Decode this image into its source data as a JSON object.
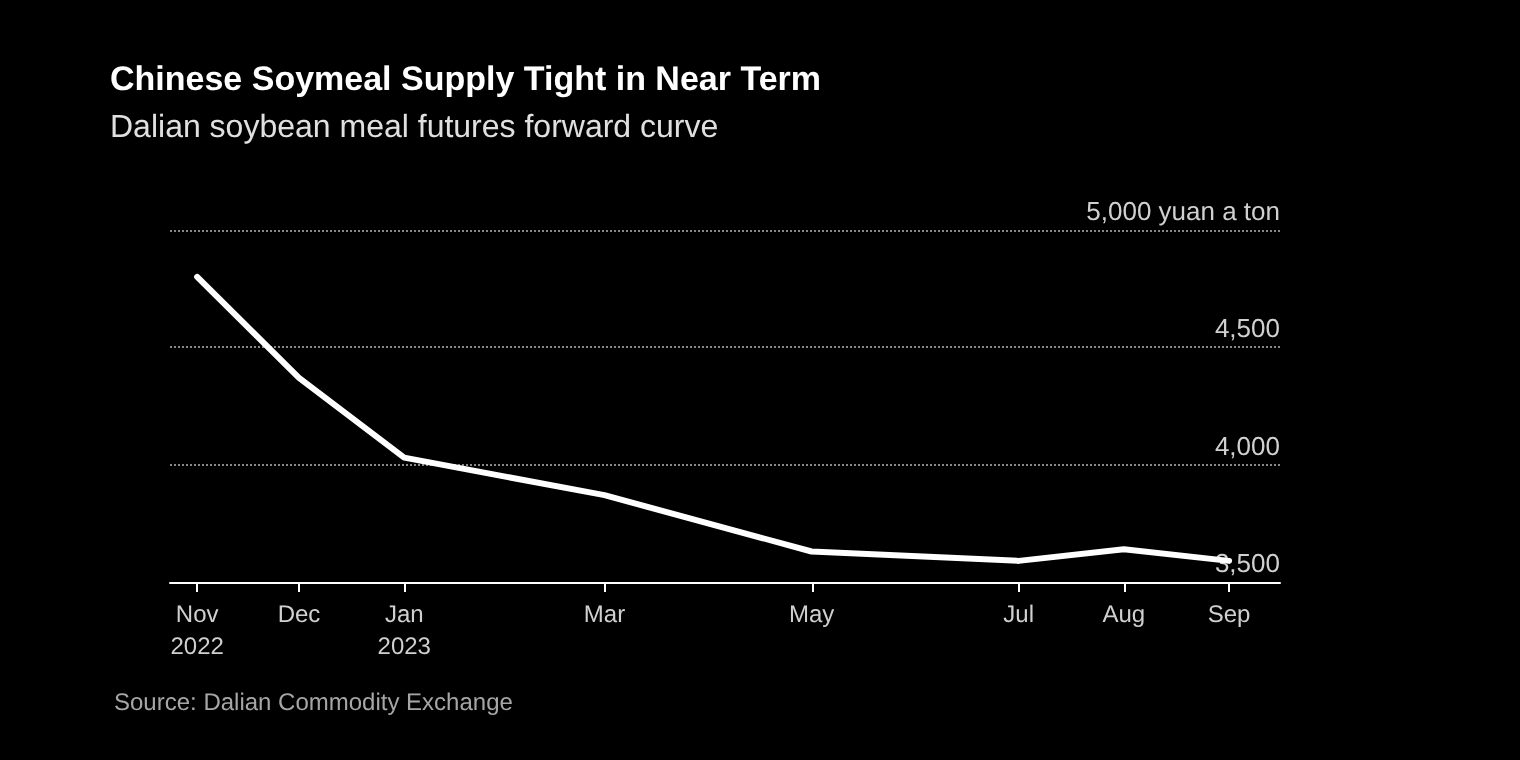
{
  "chart_data": {
    "type": "line",
    "title": "Chinese Soymeal Supply Tight in Near Term",
    "subtitle": "Dalian soybean meal futures forward curve",
    "x": [
      "2022-11",
      "2022-12",
      "2023-01",
      "2023-03",
      "2023-05",
      "2023-07",
      "2023-08",
      "2023-09"
    ],
    "values": [
      4800,
      4370,
      4030,
      3870,
      3630,
      3590,
      3640,
      3590
    ],
    "color": "#ffffff",
    "marker": "none",
    "line_style": "solid",
    "grid": "y",
    "xlim": [
      "2022-10-24",
      "2023-09-16"
    ],
    "xticks": [
      {
        "value": "2022-11",
        "label": "Nov\n2022"
      },
      {
        "value": "2022-12",
        "label": "Dec"
      },
      {
        "value": "2023-01",
        "label": "Jan\n2023"
      },
      {
        "value": "2023-03",
        "label": "Mar"
      },
      {
        "value": "2023-05",
        "label": "May"
      },
      {
        "value": "2023-07",
        "label": "Jul"
      },
      {
        "value": "2023-08",
        "label": "Aug"
      },
      {
        "value": "2023-09",
        "label": "Sep"
      }
    ],
    "ylim": [
      3500,
      5000
    ],
    "yticks": [
      {
        "value": 3500,
        "label": "3,500"
      },
      {
        "value": 4000,
        "label": "4,000"
      },
      {
        "value": 4500,
        "label": "4,500"
      },
      {
        "value": 5000,
        "label": "5,000 yuan a ton"
      }
    ],
    "annotations": [
      "Source: Dalian Commodity Exchange"
    ]
  }
}
